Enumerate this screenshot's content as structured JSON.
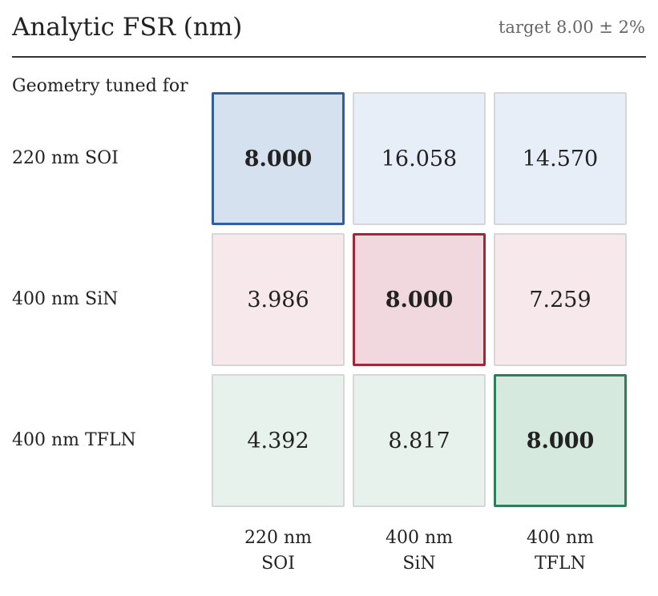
{
  "title": "Analytic FSR (nm)",
  "target_label": "target 8.00 ± 2%",
  "row_header": "Geometry tuned for",
  "chart_data": {
    "type": "heatmap",
    "title": "Analytic FSR (nm)",
    "subtitle": "target 8.00 ± 2%",
    "ylabel": "Geometry tuned for",
    "rows": [
      "220 nm SOI",
      "400 nm SiN",
      "400 nm TFLN"
    ],
    "columns": [
      {
        "line1": "220 nm",
        "line2": "SOI"
      },
      {
        "line1": "400 nm",
        "line2": "SiN"
      },
      {
        "line1": "400 nm",
        "line2": "TFLN"
      }
    ],
    "values": [
      [
        "8.000",
        "16.058",
        "14.570"
      ],
      [
        "3.986",
        "8.000",
        "7.259"
      ],
      [
        "4.392",
        "8.817",
        "8.000"
      ]
    ],
    "row_colors": [
      {
        "fill": "#e8eef7",
        "fill_diag": "#d6e1f0",
        "border_diag": "#2f5f9e"
      },
      {
        "fill": "#f6e8eb",
        "fill_diag": "#f0d8de",
        "border_diag": "#a32638"
      },
      {
        "fill": "#e7f2ec",
        "fill_diag": "#d6e9de",
        "border_diag": "#2e7d5b"
      }
    ],
    "cell_border": "#d6d6d6"
  }
}
